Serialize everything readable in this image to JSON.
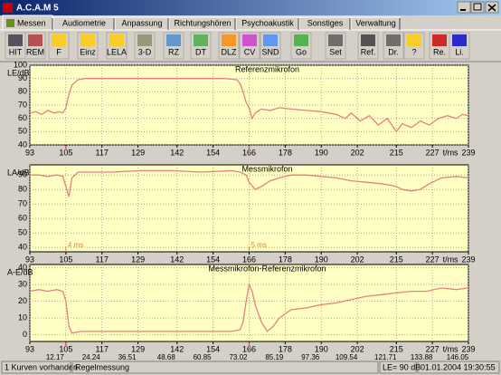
{
  "window": {
    "title": "A.C.A.M 5"
  },
  "tabs": [
    "Messen",
    "Audiometrie",
    "Anpassung",
    "Richtungshören",
    "Psychoakustik",
    "Sonstiges",
    "Verwaltung"
  ],
  "toolbar": [
    "HIT",
    "REM",
    "F",
    "Einz",
    "LELA",
    "3-D",
    "RZ",
    "DT",
    "DLZ",
    "CV",
    "SND",
    "Go",
    "Set",
    "Ref.",
    "Dr.",
    "?",
    "Re.",
    "Li."
  ],
  "chart_data": [
    {
      "type": "line",
      "title": "Referenzmikrofon",
      "ylabel": "LE/dB",
      "xlabel": "t/ms",
      "color": "#e88080",
      "grid": true,
      "xlim": [
        93,
        239
      ],
      "xticks": [
        93,
        105,
        117,
        129,
        142,
        154,
        166,
        178,
        190,
        202,
        215,
        227,
        239
      ],
      "ylim": [
        40,
        100
      ],
      "yticks": [
        40,
        50,
        60,
        70,
        80,
        90,
        100
      ],
      "markers": [
        105,
        166
      ],
      "x": [
        93,
        95,
        97,
        99,
        101,
        103,
        104,
        105,
        106,
        107,
        109,
        111,
        114,
        120,
        130,
        140,
        150,
        158,
        162,
        163,
        164,
        165,
        166,
        167,
        168,
        170,
        173,
        176,
        180,
        185,
        190,
        195,
        198,
        200,
        203,
        206,
        209,
        212,
        215,
        217,
        220,
        223,
        226,
        229,
        232,
        235,
        237,
        239
      ],
      "values": [
        64,
        65,
        63,
        66,
        64,
        65,
        64,
        68,
        78,
        85,
        89,
        90,
        90,
        90,
        90,
        90,
        90,
        90,
        89,
        86,
        80,
        72,
        68,
        60,
        64,
        67,
        66,
        68,
        67,
        66,
        65,
        63,
        60,
        64,
        58,
        62,
        55,
        60,
        50,
        56,
        53,
        58,
        55,
        60,
        62,
        60,
        63,
        62
      ]
    },
    {
      "type": "line",
      "title": "Messmikrofon",
      "ylabel": "LA/dB",
      "xlabel": "t/ms",
      "color": "#e88080",
      "grid": true,
      "xlim": [
        93,
        239
      ],
      "xticks": [
        93,
        105,
        117,
        129,
        142,
        154,
        166,
        178,
        190,
        202,
        215,
        227,
        239
      ],
      "ylim": [
        37,
        97
      ],
      "yticks": [
        40,
        50,
        60,
        70,
        80,
        90
      ],
      "annotations": [
        {
          "x": 105,
          "label": "4 ms"
        },
        {
          "x": 166,
          "label": "5 ms"
        }
      ],
      "x": [
        93,
        96,
        99,
        102,
        104,
        105,
        106,
        107,
        109,
        112,
        120,
        130,
        140,
        150,
        160,
        163,
        165,
        166,
        168,
        170,
        173,
        176,
        180,
        185,
        190,
        195,
        200,
        205,
        210,
        213,
        215,
        217,
        220,
        223,
        226,
        230,
        235,
        239
      ],
      "values": [
        90,
        90,
        89,
        90,
        89,
        82,
        75,
        88,
        92,
        92,
        92,
        93,
        93,
        92,
        93,
        92,
        90,
        85,
        80,
        82,
        86,
        88,
        90,
        90,
        89,
        88,
        86,
        85,
        84,
        83,
        82,
        80,
        79,
        80,
        84,
        88,
        89,
        88
      ]
    },
    {
      "type": "line",
      "title": "Messmikrofon-Referenzmikrofon",
      "ylabel": "A-E/dB",
      "xlabel": "t/ms",
      "color": "#e88080",
      "grid": true,
      "xlim": [
        93,
        239
      ],
      "xticks": [
        93,
        105,
        117,
        129,
        142,
        154,
        166,
        178,
        190,
        202,
        215,
        227,
        239
      ],
      "xticks_secondary": [
        {
          "value": 105,
          "label": "12.17"
        },
        {
          "value": 117,
          "label": "24.24"
        },
        {
          "value": 129,
          "label": "36.51"
        },
        {
          "value": 142,
          "label": "48.68"
        },
        {
          "value": 154,
          "label": "60.85"
        },
        {
          "value": 166,
          "label": "73.02"
        },
        {
          "value": 178,
          "label": "85.19"
        },
        {
          "value": 190,
          "label": "97.36"
        },
        {
          "value": 202,
          "label": "109.54"
        },
        {
          "value": 215,
          "label": "121.71"
        },
        {
          "value": 227,
          "label": "133.88"
        },
        {
          "value": 239,
          "label": "146.05"
        }
      ],
      "ylim": [
        -4,
        42
      ],
      "yticks": [
        0,
        10,
        20,
        30,
        40
      ],
      "markers": [
        105,
        166
      ],
      "x": [
        93,
        96,
        99,
        102,
        104,
        105,
        106,
        107,
        110,
        120,
        130,
        140,
        150,
        160,
        163,
        164,
        165,
        166,
        167,
        168,
        170,
        172,
        174,
        176,
        180,
        185,
        190,
        195,
        200,
        205,
        210,
        215,
        220,
        225,
        230,
        235,
        239
      ],
      "values": [
        26,
        27,
        26,
        27,
        26,
        20,
        5,
        1,
        2,
        2,
        2,
        2,
        2,
        2,
        3,
        8,
        20,
        30,
        26,
        18,
        8,
        2,
        5,
        10,
        15,
        16,
        18,
        19,
        21,
        23,
        24,
        25,
        26,
        26,
        28,
        27,
        28
      ]
    }
  ],
  "status": [
    "1 Kurven vorhanden",
    "Regelmessung",
    "LE= 90 dB",
    "01.01.2004 19:30:55"
  ]
}
